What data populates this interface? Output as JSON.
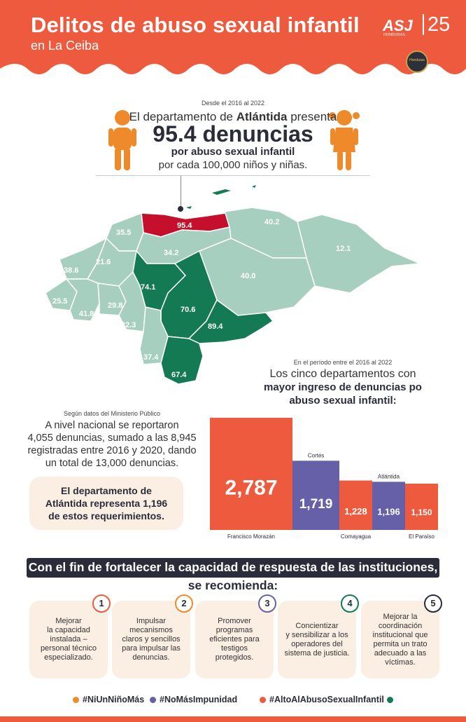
{
  "colors": {
    "orange_red": "#ee5a3e",
    "navy": "#2b2c3a",
    "purple": "#6660a8",
    "dark_green": "#137a53",
    "light_green": "#a6cfc0",
    "crimson": "#c4102d",
    "beige": "#fbeee2",
    "figure_orange": "#ee8a2a"
  },
  "header": {
    "title": "Delitos de abuso sexual infantil",
    "subtitle": "en La Ceiba",
    "logo_text": "ASJ",
    "anniversary": "25",
    "logo_tagline": "HONDURAS",
    "badge_text": "Honduras"
  },
  "intro": {
    "period": "Desde el 2016 al 2022",
    "line1_prefix": "El departamento de ",
    "line1_bold": "Atlántida",
    "line1_suffix": " presenta",
    "big": "95.4 denuncias",
    "line3": "por abuso sexual infantil",
    "line4": "por cada 100,000 niños y niñas.",
    "icons": [
      "boy-figure-icon",
      "girl-figure-icon"
    ]
  },
  "map": {
    "departments": [
      {
        "name": "Atlántida",
        "value": "95.4",
        "level": "highlight"
      },
      {
        "name": "Colón",
        "value": "40.2",
        "level": "low"
      },
      {
        "name": "Gracias a Dios",
        "value": "12.1",
        "level": "low"
      },
      {
        "name": "Cortés",
        "value": "35.5",
        "level": "low"
      },
      {
        "name": "Yoro",
        "value": "34.2",
        "level": "low"
      },
      {
        "name": "Olancho",
        "value": "40.0",
        "level": "low"
      },
      {
        "name": "Copán",
        "value": "38.6",
        "level": "low"
      },
      {
        "name": "Santa Bárbara",
        "value": "21.6",
        "level": "low"
      },
      {
        "name": "Comayagua",
        "value": "74.1",
        "level": "high"
      },
      {
        "name": "Ocotepeque",
        "value": "25.5",
        "level": "low"
      },
      {
        "name": "Lempira",
        "value": "41.8",
        "level": "low"
      },
      {
        "name": "Intibucá",
        "value": "29.8",
        "level": "low"
      },
      {
        "name": "La Paz",
        "value": "32.3",
        "level": "low"
      },
      {
        "name": "Francisco Morazán",
        "value": "70.6",
        "level": "high"
      },
      {
        "name": "El Paraíso",
        "value": "89.4",
        "level": "high"
      },
      {
        "name": "Valle",
        "value": "37.4",
        "level": "low"
      },
      {
        "name": "Choluteca",
        "value": "67.4",
        "level": "high"
      }
    ]
  },
  "period_block": {
    "pre": "En el período entre el 2016 al 2022",
    "line1": "Los cinco departamentos con",
    "line2": "mayor ingreso de denuncias po",
    "line3": "abuso sexual infantil:"
  },
  "national": {
    "pre": "Según datos del Ministerio Público",
    "lines": [
      "A nivel nacional se reportaron",
      "4,055 denuncias, sumado a las 8,945",
      "registradas entre 2016 y 2020, dando",
      "un total de 13,000 denuncias."
    ],
    "box_lines": [
      "El departamento de",
      "Atlántida representa 1,196",
      "de estos requerimientos."
    ]
  },
  "chart_data": {
    "type": "bar",
    "categories": [
      "Francisco Morazán",
      "Cortés",
      "Comayagua",
      "Atlántida",
      "El Paraíso"
    ],
    "values": [
      2787,
      1719,
      1228,
      1196,
      1150
    ],
    "value_labels": [
      "2,787",
      "1,719",
      "1,228",
      "1,196",
      "1,150"
    ],
    "bar_colors": [
      "#ee5a3e",
      "#6660a8",
      "#ee5a3e",
      "#6660a8",
      "#ee5a3e"
    ],
    "category_label_position": [
      "below",
      "above",
      "below",
      "above",
      "below"
    ],
    "title": "",
    "xlabel": "",
    "ylabel": "",
    "ylim": [
      0,
      2787
    ],
    "grid": false
  },
  "recommendations": {
    "heading_line1": "Con el fin de fortalecer la capacidad de respuesta de las instituciones,",
    "heading_line2": "se recomienda:",
    "items": [
      {
        "number": "1",
        "color": "#ee5a3e",
        "lines": [
          "Mejorar",
          "la capacidad",
          "instalada –",
          "personal técnico",
          "especializado."
        ]
      },
      {
        "number": "2",
        "color": "#ee8a2a",
        "lines": [
          "Impulsar",
          "mecanismos",
          "claros y sencillos",
          "para impulsar las",
          "denuncias."
        ]
      },
      {
        "number": "3",
        "color": "#6660a8",
        "lines": [
          "Promover",
          "programas",
          "eficientes para",
          "testigos",
          "protegidos."
        ]
      },
      {
        "number": "4",
        "color": "#137a53",
        "lines": [
          "Concientizar",
          "y sensibilizar a los",
          "operadores del",
          "sistema de justicia."
        ]
      },
      {
        "number": "5",
        "color": "#2b2c3a",
        "lines": [
          "Mejorar la",
          "coordinación",
          "institucional que",
          "permita un trato",
          "adecuado a las",
          "víctimas."
        ]
      }
    ]
  },
  "hashtags": [
    {
      "text": "#NiUnNiñoMás",
      "color": "#ee8a2a"
    },
    {
      "text": "#NoMásImpunidad",
      "color": "#6660a8"
    },
    {
      "text": "#AltoAlAbusoSexualInfantil",
      "color": "#ee5a3e"
    }
  ],
  "hashtag_end_dot": "#137a53"
}
